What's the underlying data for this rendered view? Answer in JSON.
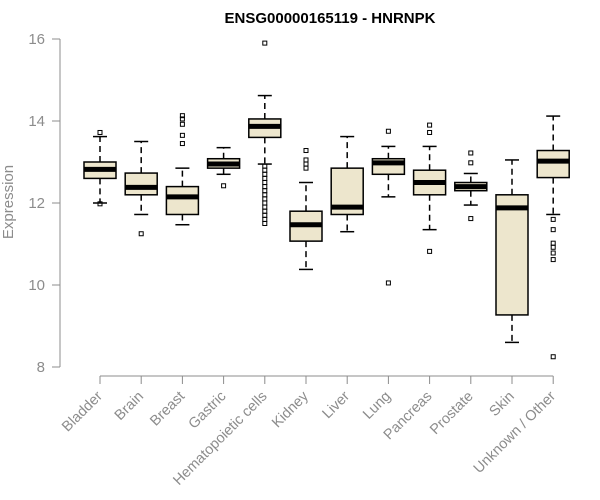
{
  "chart_data": {
    "type": "boxplot",
    "title": "ENSG00000165119 - HNRNPK",
    "ylabel": "Expression",
    "ylim": [
      8,
      16
    ],
    "yticks": [
      8,
      10,
      12,
      14,
      16
    ],
    "box_fill": "#ede6cd",
    "categories": [
      "Bladder",
      "Brain",
      "Breast",
      "Gastric",
      "Hematopoietic cells",
      "Kidney",
      "Liver",
      "Lung",
      "Pancreas",
      "Prostate",
      "Skin",
      "Unknown / Other"
    ],
    "boxes": [
      {
        "category": "Bladder",
        "whisker_low": 12.0,
        "q1": 12.6,
        "median": 12.82,
        "q3": 13.0,
        "whisker_high": 13.62,
        "outliers": [
          11.98,
          13.72
        ]
      },
      {
        "category": "Brain",
        "whisker_low": 11.72,
        "q1": 12.2,
        "median": 12.38,
        "q3": 12.73,
        "whisker_high": 13.5,
        "outliers": [
          11.25
        ]
      },
      {
        "category": "Breast",
        "whisker_low": 11.47,
        "q1": 11.72,
        "median": 12.15,
        "q3": 12.4,
        "whisker_high": 12.85,
        "outliers": [
          13.45,
          13.65,
          13.92,
          14.05,
          14.13
        ]
      },
      {
        "category": "Gastric",
        "whisker_low": 12.7,
        "q1": 12.85,
        "median": 12.95,
        "q3": 13.08,
        "whisker_high": 13.35,
        "outliers": [
          12.42
        ]
      },
      {
        "category": "Hematopoietic cells",
        "whisker_low": 12.95,
        "q1": 13.6,
        "median": 13.87,
        "q3": 14.05,
        "whisker_high": 14.62,
        "outliers": [
          15.9,
          12.9,
          12.8,
          12.7,
          12.6,
          12.5,
          12.4,
          12.3,
          12.2,
          12.1,
          12.0,
          11.9,
          11.8,
          11.7,
          11.6,
          11.5
        ]
      },
      {
        "category": "Kidney",
        "whisker_low": 10.38,
        "q1": 11.07,
        "median": 11.47,
        "q3": 11.8,
        "whisker_high": 12.5,
        "outliers": [
          12.85,
          12.95,
          13.05,
          13.28
        ]
      },
      {
        "category": "Liver",
        "whisker_low": 11.3,
        "q1": 11.72,
        "median": 11.9,
        "q3": 12.85,
        "whisker_high": 13.62,
        "outliers": []
      },
      {
        "category": "Lung",
        "whisker_low": 12.15,
        "q1": 12.7,
        "median": 12.98,
        "q3": 13.08,
        "whisker_high": 13.38,
        "outliers": [
          10.05,
          13.75
        ]
      },
      {
        "category": "Pancreas",
        "whisker_low": 11.35,
        "q1": 12.2,
        "median": 12.5,
        "q3": 12.8,
        "whisker_high": 13.38,
        "outliers": [
          10.82,
          13.72,
          13.9
        ]
      },
      {
        "category": "Prostate",
        "whisker_low": 11.95,
        "q1": 12.3,
        "median": 12.4,
        "q3": 12.5,
        "whisker_high": 12.72,
        "outliers": [
          11.62,
          12.98,
          13.22
        ]
      },
      {
        "category": "Skin",
        "whisker_low": 8.6,
        "q1": 9.27,
        "median": 11.88,
        "q3": 12.2,
        "whisker_high": 13.05,
        "outliers": []
      },
      {
        "category": "Unknown / Other",
        "whisker_low": 11.72,
        "q1": 12.62,
        "median": 13.02,
        "q3": 13.28,
        "whisker_high": 14.12,
        "outliers": [
          8.25,
          10.62,
          10.78,
          10.92,
          11.02,
          11.35,
          11.6
        ]
      }
    ]
  }
}
